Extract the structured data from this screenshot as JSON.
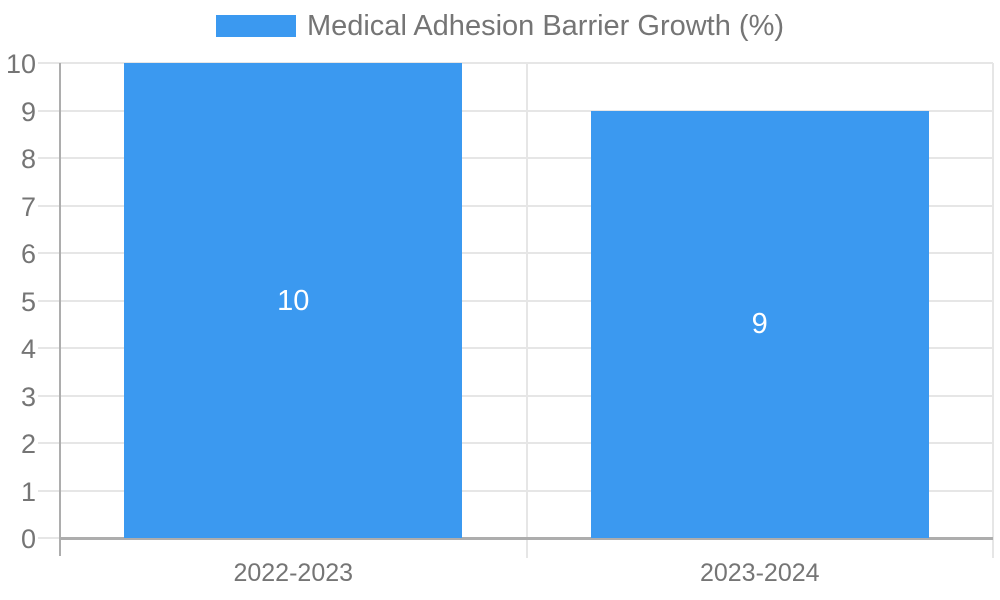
{
  "chart_data": {
    "type": "bar",
    "title": "Medical Adhesion Barrier Growth (%)",
    "categories": [
      "2022-2023",
      "2023-2024"
    ],
    "values": [
      10,
      9
    ],
    "xlabel": "",
    "ylabel": "",
    "ylim": [
      0,
      10
    ],
    "ytick_step": 1,
    "ytick_labels": [
      "0",
      "1",
      "2",
      "3",
      "4",
      "5",
      "6",
      "7",
      "8",
      "9",
      "10"
    ],
    "grid": true,
    "legend_position": "top-center",
    "colors": {
      "bar": "#3B99F0",
      "gridline": "#E6E6E6",
      "axis_line": "#ADADAD",
      "tick_label": "#757575",
      "bar_value_label": "#FFFFFF",
      "background": "#FFFFFF"
    }
  }
}
